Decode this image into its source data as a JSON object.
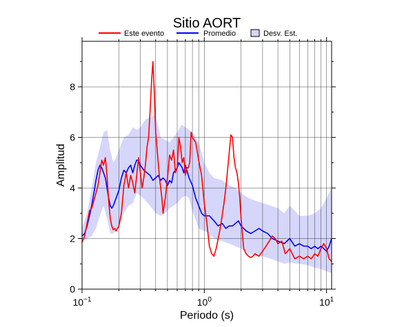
{
  "chart_data": {
    "type": "line",
    "title": "Sitio AORT",
    "xlabel": "Periodo (s)",
    "ylabel": "Amplitud",
    "xscale": "log",
    "xlim": [
      0.1,
      11
    ],
    "ylim": [
      0,
      9.8
    ],
    "x_ticks": [
      {
        "value": 0.1,
        "base": "10",
        "exp": "−1"
      },
      {
        "value": 1,
        "base": "10",
        "exp": "0"
      },
      {
        "value": 10,
        "base": "10",
        "exp": "1"
      }
    ],
    "y_ticks": [
      0,
      2,
      4,
      6,
      8
    ],
    "grid": true,
    "legend_position": "top",
    "legend": [
      {
        "label": "Este evento",
        "kind": "line",
        "color": "#ff0000"
      },
      {
        "label": "Promedio",
        "kind": "line",
        "color": "#0000ff"
      },
      {
        "label": "Desv. Est.",
        "kind": "box",
        "color": "#d6d6fa"
      }
    ],
    "series": [
      {
        "name": "Este evento",
        "color": "#ff0000",
        "x": [
          0.1,
          0.105,
          0.11,
          0.115,
          0.12,
          0.125,
          0.13,
          0.135,
          0.14,
          0.145,
          0.15,
          0.155,
          0.16,
          0.165,
          0.17,
          0.175,
          0.18,
          0.185,
          0.19,
          0.2,
          0.21,
          0.22,
          0.23,
          0.24,
          0.25,
          0.26,
          0.27,
          0.28,
          0.29,
          0.3,
          0.31,
          0.32,
          0.33,
          0.34,
          0.35,
          0.36,
          0.37,
          0.38,
          0.39,
          0.4,
          0.41,
          0.42,
          0.43,
          0.44,
          0.45,
          0.46,
          0.48,
          0.5,
          0.52,
          0.54,
          0.56,
          0.58,
          0.6,
          0.62,
          0.64,
          0.66,
          0.68,
          0.7,
          0.72,
          0.74,
          0.76,
          0.78,
          0.8,
          0.85,
          0.9,
          0.95,
          1.0,
          1.05,
          1.1,
          1.15,
          1.2,
          1.25,
          1.3,
          1.35,
          1.4,
          1.45,
          1.5,
          1.55,
          1.6,
          1.65,
          1.7,
          1.75,
          1.8,
          1.85,
          1.9,
          1.95,
          2.0,
          2.1,
          2.2,
          2.3,
          2.4,
          2.5,
          2.6,
          2.8,
          3.0,
          3.2,
          3.4,
          3.6,
          3.8,
          4.0,
          4.3,
          4.6,
          5.0,
          5.5,
          6.0,
          6.5,
          7.0,
          7.5,
          8.0,
          8.5,
          9.0,
          9.5,
          10.0,
          10.5,
          11.0
        ],
        "y": [
          1.85,
          2.1,
          2.6,
          3.1,
          3.2,
          3.5,
          3.8,
          4.1,
          4.6,
          5.1,
          4.9,
          5.2,
          4.5,
          3.5,
          2.8,
          2.5,
          2.35,
          2.4,
          2.3,
          2.5,
          3.0,
          4.1,
          4.6,
          4.0,
          4.5,
          4.2,
          3.8,
          4.5,
          5.2,
          4.6,
          4.0,
          4.4,
          4.9,
          5.6,
          6.0,
          7.0,
          8.2,
          9.0,
          7.8,
          6.2,
          5.6,
          5.0,
          4.4,
          4.0,
          3.6,
          3.0,
          3.6,
          4.4,
          5.3,
          5.1,
          5.5,
          4.6,
          4.8,
          6.0,
          5.6,
          5.0,
          5.2,
          4.5,
          4.8,
          4.8,
          5.0,
          6.2,
          6.0,
          5.8,
          5.1,
          4.5,
          3.4,
          2.6,
          1.7,
          1.4,
          1.3,
          1.6,
          2.0,
          2.4,
          2.9,
          3.4,
          4.0,
          4.7,
          5.4,
          6.1,
          6.0,
          5.2,
          4.8,
          4.6,
          4.2,
          3.6,
          2.8,
          1.6,
          1.4,
          1.3,
          1.25,
          1.3,
          1.4,
          1.3,
          1.5,
          1.7,
          1.9,
          2.1,
          2.0,
          1.8,
          1.9,
          1.4,
          1.6,
          1.2,
          1.3,
          1.2,
          1.3,
          1.2,
          1.4,
          1.3,
          1.6,
          1.8,
          1.6,
          1.2,
          1.1
        ]
      },
      {
        "name": "Promedio",
        "color": "#0000ff",
        "x": [
          0.1,
          0.105,
          0.11,
          0.115,
          0.12,
          0.125,
          0.13,
          0.135,
          0.14,
          0.145,
          0.15,
          0.155,
          0.16,
          0.165,
          0.17,
          0.175,
          0.18,
          0.19,
          0.2,
          0.21,
          0.22,
          0.23,
          0.24,
          0.25,
          0.26,
          0.27,
          0.28,
          0.29,
          0.3,
          0.32,
          0.34,
          0.36,
          0.38,
          0.4,
          0.42,
          0.44,
          0.46,
          0.48,
          0.5,
          0.52,
          0.54,
          0.56,
          0.58,
          0.6,
          0.62,
          0.64,
          0.66,
          0.68,
          0.7,
          0.75,
          0.8,
          0.85,
          0.9,
          0.95,
          1.0,
          1.1,
          1.2,
          1.3,
          1.4,
          1.5,
          1.6,
          1.7,
          1.8,
          1.9,
          2.0,
          2.2,
          2.4,
          2.6,
          2.8,
          3.0,
          3.3,
          3.6,
          4.0,
          4.5,
          5.0,
          5.5,
          6.0,
          6.5,
          7.0,
          7.5,
          8.0,
          8.5,
          9.0,
          9.5,
          10.0,
          10.5,
          11.0
        ],
        "y": [
          2.1,
          2.2,
          2.5,
          2.9,
          3.3,
          3.8,
          4.3,
          4.7,
          4.9,
          4.8,
          4.6,
          4.4,
          4.0,
          3.6,
          3.3,
          3.2,
          3.3,
          3.6,
          3.9,
          4.4,
          4.7,
          4.6,
          4.8,
          4.9,
          4.6,
          4.9,
          5.1,
          5.1,
          4.9,
          4.7,
          4.6,
          4.5,
          4.3,
          4.4,
          4.5,
          4.3,
          4.4,
          4.3,
          4.1,
          4.3,
          4.2,
          4.6,
          4.7,
          4.8,
          5.0,
          4.9,
          4.8,
          4.6,
          4.9,
          4.4,
          4.1,
          3.6,
          3.3,
          3.0,
          2.9,
          2.9,
          2.7,
          2.5,
          2.6,
          2.4,
          2.5,
          2.5,
          2.6,
          2.7,
          2.5,
          2.3,
          2.2,
          2.3,
          2.4,
          2.3,
          2.2,
          2.0,
          1.9,
          1.8,
          2.0,
          1.7,
          1.8,
          1.7,
          1.7,
          1.6,
          1.7,
          1.6,
          1.7,
          1.6,
          1.5,
          1.7,
          2.0
        ]
      }
    ],
    "band": {
      "name": "Desv. Est.",
      "color": "#d6d6fa",
      "x": [
        0.1,
        0.11,
        0.12,
        0.13,
        0.14,
        0.15,
        0.16,
        0.17,
        0.18,
        0.19,
        0.2,
        0.22,
        0.24,
        0.26,
        0.28,
        0.3,
        0.33,
        0.36,
        0.4,
        0.44,
        0.48,
        0.52,
        0.56,
        0.6,
        0.65,
        0.7,
        0.75,
        0.8,
        0.9,
        1.0,
        1.1,
        1.2,
        1.4,
        1.6,
        1.8,
        2.0,
        2.3,
        2.6,
        3.0,
        3.5,
        4.0,
        4.5,
        5.0,
        6.0,
        7.0,
        8.0,
        9.0,
        10.0,
        11.0
      ],
      "upper": [
        2.4,
        3.0,
        4.0,
        5.0,
        5.6,
        6.2,
        6.3,
        5.5,
        5.0,
        5.2,
        5.5,
        6.0,
        6.1,
        6.4,
        6.3,
        6.4,
        6.7,
        6.8,
        6.9,
        6.0,
        5.9,
        5.8,
        6.0,
        6.2,
        6.5,
        6.4,
        6.3,
        6.2,
        5.8,
        5.0,
        4.6,
        4.4,
        4.3,
        4.1,
        4.0,
        3.8,
        3.6,
        3.5,
        3.4,
        3.3,
        3.2,
        3.0,
        3.3,
        2.9,
        2.9,
        3.0,
        3.2,
        3.6,
        4.0
      ],
      "lower": [
        1.9,
        2.0,
        2.1,
        2.4,
        2.9,
        3.3,
        2.8,
        2.2,
        2.2,
        2.3,
        2.4,
        3.0,
        3.3,
        3.4,
        3.8,
        3.7,
        3.5,
        3.3,
        3.0,
        2.9,
        3.0,
        3.2,
        3.3,
        3.4,
        3.6,
        3.7,
        3.6,
        3.1,
        2.4,
        2.3,
        2.2,
        2.0,
        1.9,
        1.8,
        1.7,
        1.6,
        1.4,
        1.3,
        1.3,
        1.2,
        1.1,
        1.0,
        1.05,
        1.0,
        0.95,
        0.85,
        0.8,
        0.7,
        0.65
      ]
    }
  }
}
